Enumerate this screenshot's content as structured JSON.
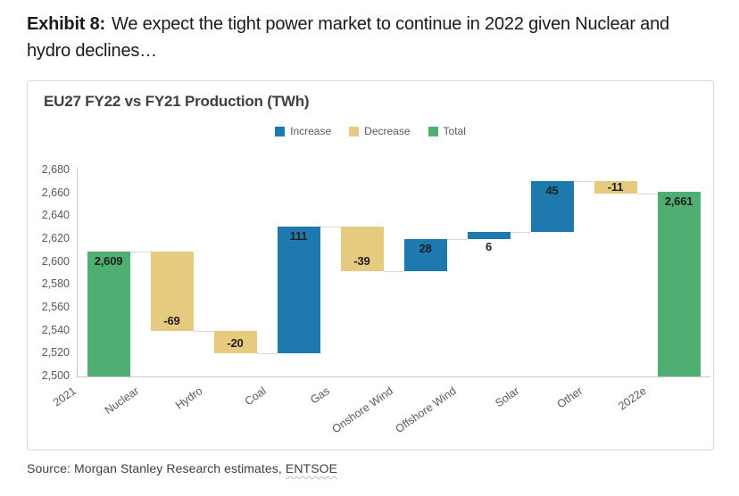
{
  "page": {
    "exhibit_label": "Exhibit 8:",
    "exhibit_text": "We expect the tight power market to continue in 2022 given Nuclear and hydro declines…",
    "source_prefix": "Source: Morgan Stanley Research estimates, ",
    "source_highlight": "ENTSOE"
  },
  "chart_data": {
    "type": "bar",
    "subtype": "waterfall",
    "title": "EU27 FY22 vs FY21 Production (TWh)",
    "legend": [
      {
        "label": "Increase",
        "type": "increase"
      },
      {
        "label": "Decrease",
        "type": "decrease"
      },
      {
        "label": "Total",
        "type": "total"
      }
    ],
    "colors": {
      "increase": "#1E79AE",
      "decrease": "#E6CA80",
      "total": "#4FAE72",
      "axis": "#c9c9c9",
      "connector": "#d9d9d9",
      "tick_text": "#595959",
      "value_text": "#1f1f1f"
    },
    "categories": [
      "2021",
      "Nuclear",
      "Hydro",
      "Coal",
      "Gas",
      "Onshore Wind",
      "Offshore Wind",
      "Solar",
      "Other",
      "2022e"
    ],
    "items": [
      {
        "category": "2021",
        "type": "total",
        "value": 2609,
        "label": "2,609"
      },
      {
        "category": "Nuclear",
        "type": "decrease",
        "value": -69,
        "label": "-69"
      },
      {
        "category": "Hydro",
        "type": "decrease",
        "value": -20,
        "label": "-20"
      },
      {
        "category": "Coal",
        "type": "increase",
        "value": 111,
        "label": "111"
      },
      {
        "category": "Gas",
        "type": "decrease",
        "value": -39,
        "label": "-39"
      },
      {
        "category": "Onshore Wind",
        "type": "increase",
        "value": 28,
        "label": "28"
      },
      {
        "category": "Offshore Wind",
        "type": "increase",
        "value": 6,
        "label": "6"
      },
      {
        "category": "Solar",
        "type": "increase",
        "value": 45,
        "label": "45"
      },
      {
        "category": "Other",
        "type": "decrease",
        "value": -11,
        "label": "-11"
      },
      {
        "category": "2022e",
        "type": "total",
        "value": 2661,
        "label": "2,661"
      }
    ],
    "y_axis": {
      "min": 2500,
      "max": 2680,
      "step": 20,
      "tick_labels": [
        "2,500",
        "2,520",
        "2,540",
        "2,560",
        "2,580",
        "2,600",
        "2,620",
        "2,640",
        "2,660",
        "2,680"
      ]
    },
    "grid": false,
    "legend_position": "top-center",
    "xlabel": "",
    "ylabel": ""
  }
}
